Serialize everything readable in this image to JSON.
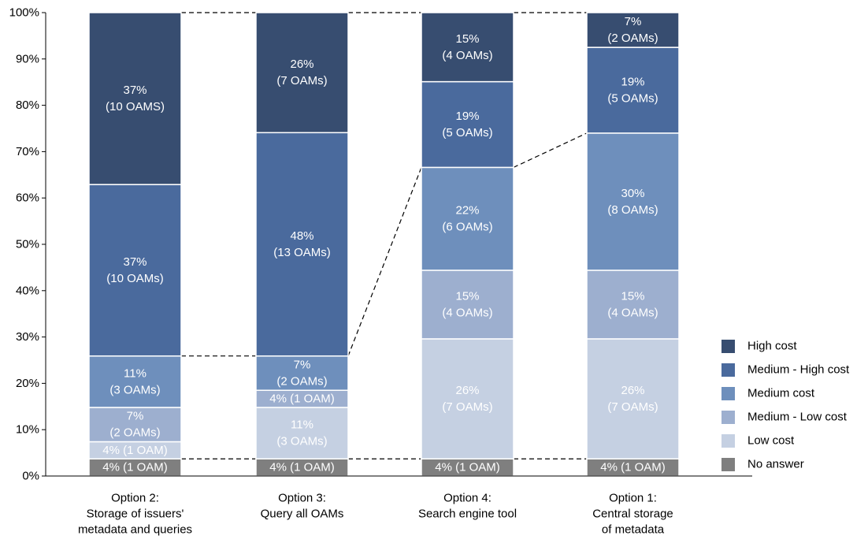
{
  "chart_data": {
    "type": "bar",
    "stacked": true,
    "percent_stacked": true,
    "ylim": [
      0,
      100
    ],
    "y_ticks": [
      "0%",
      "10%",
      "20%",
      "30%",
      "40%",
      "50%",
      "60%",
      "70%",
      "80%",
      "90%",
      "100%"
    ],
    "categories": [
      [
        "Option 2:",
        "Storage of issuers'",
        "metadata and queries"
      ],
      [
        "Option 3:",
        "Query all OAMs"
      ],
      [
        "Option 4:",
        "Search engine tool"
      ],
      [
        "Option 1:",
        "Central storage",
        "of metadata"
      ]
    ],
    "series": [
      {
        "name": "No answer",
        "color": "#7f7f7f",
        "values": [
          3.7,
          3.7,
          3.7,
          3.7
        ],
        "labels": [
          [
            "4% (1 OAM)"
          ],
          [
            "4% (1 OAM)"
          ],
          [
            "4% (1 OAM)"
          ],
          [
            "4% (1 OAM)"
          ]
        ]
      },
      {
        "name": "Low cost",
        "color": "#c5d0e2",
        "values": [
          3.7,
          11.1,
          25.9,
          25.9
        ],
        "labels": [
          [
            "4% (1 OAM)"
          ],
          [
            "11%",
            "(3 OAMs)"
          ],
          [
            "26%",
            "(7 OAMs)"
          ],
          [
            "26%",
            "(7 OAMs)"
          ]
        ]
      },
      {
        "name": "Medium - Low cost",
        "color": "#9dafcf",
        "values": [
          7.4,
          3.7,
          14.8,
          14.8
        ],
        "labels": [
          [
            "7%",
            "(2 OAMs)"
          ],
          [
            "4% (1 OAM)"
          ],
          [
            "15%",
            "(4 OAMs)"
          ],
          [
            "15%",
            "(4 OAMs)"
          ]
        ]
      },
      {
        "name": "Medium cost",
        "color": "#6e8fbc",
        "values": [
          11.1,
          7.4,
          22.2,
          29.6
        ],
        "labels": [
          [
            "11%",
            "(3 OAMs)"
          ],
          [
            "7%",
            "(2 OAMs)"
          ],
          [
            "22%",
            "(6 OAMs)"
          ],
          [
            "30%",
            "(8 OAMs)"
          ]
        ]
      },
      {
        "name": "Medium - High cost",
        "color": "#4a6a9d",
        "values": [
          37.0,
          48.2,
          18.5,
          18.5
        ],
        "labels": [
          [
            "37%",
            "(10 OAMs)"
          ],
          [
            "48%",
            "(13 OAMs)"
          ],
          [
            "19%",
            "(5 OAMs)"
          ],
          [
            "19%",
            "(5 OAMs)"
          ]
        ]
      },
      {
        "name": "High cost",
        "color": "#374d70",
        "values": [
          37.1,
          25.9,
          14.9,
          7.5
        ],
        "labels": [
          [
            "37%",
            "(10 OAMS)"
          ],
          [
            "26%",
            "(7 OAMs)"
          ],
          [
            "15%",
            "(4 OAMs)"
          ],
          [
            "7%",
            "(2 OAMs)"
          ]
        ]
      }
    ],
    "legend_order": [
      "High cost",
      "Medium - High cost",
      "Medium cost",
      "Medium - Low cost",
      "Low cost",
      "No answer"
    ],
    "legend_position": "right",
    "grid": false,
    "connector_lines": "dashed lines between adjacent bars at matching segment boundaries"
  }
}
